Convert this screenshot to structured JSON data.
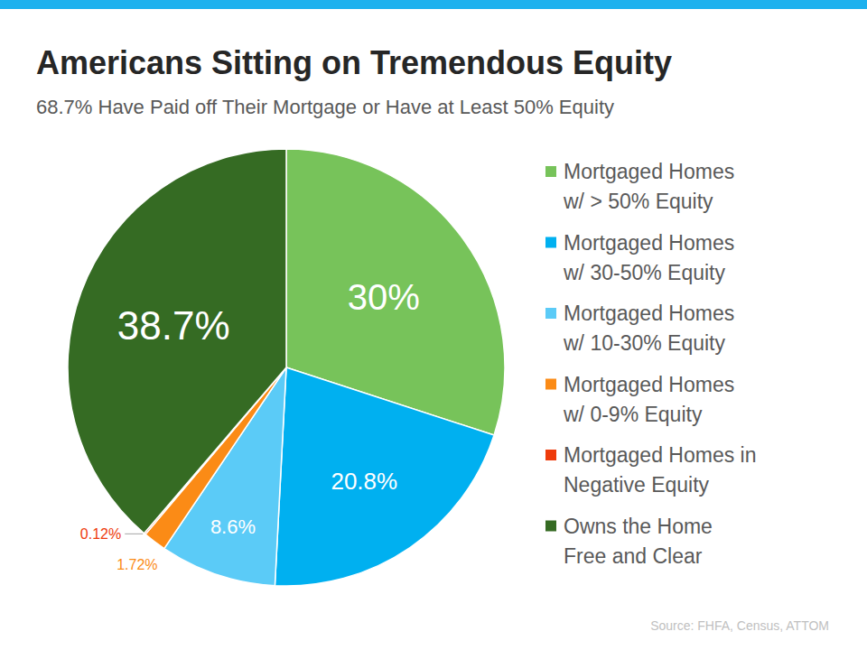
{
  "chart_data": {
    "type": "pie",
    "title": "Americans Sitting on Tremendous Equity",
    "subtitle": "68.7% Have Paid off Their Mortgage or Have at Least 50% Equity",
    "source": "Source: FHFA, Census, ATTOM",
    "categories": [
      "Mortgaged Homes w/ > 50% Equity",
      "Mortgaged Homes w/ 30-50% Equity",
      "Mortgaged Homes w/ 10-30% Equity",
      "Mortgaged Homes w/ 0-9% Equity",
      "Mortgaged Homes in Negative Equity",
      "Owns the Home Free and Clear"
    ],
    "values": [
      30,
      20.8,
      8.6,
      1.72,
      0.12,
      38.7
    ],
    "value_labels": [
      "30%",
      "20.8%",
      "8.6%",
      "1.72%",
      "0.12%",
      "38.7%"
    ],
    "colors": [
      "#77c35a",
      "#00b0f0",
      "#5bcbf7",
      "#fb8b16",
      "#ee3b0b",
      "#356b23"
    ],
    "data_labels": true,
    "legend": "right"
  }
}
